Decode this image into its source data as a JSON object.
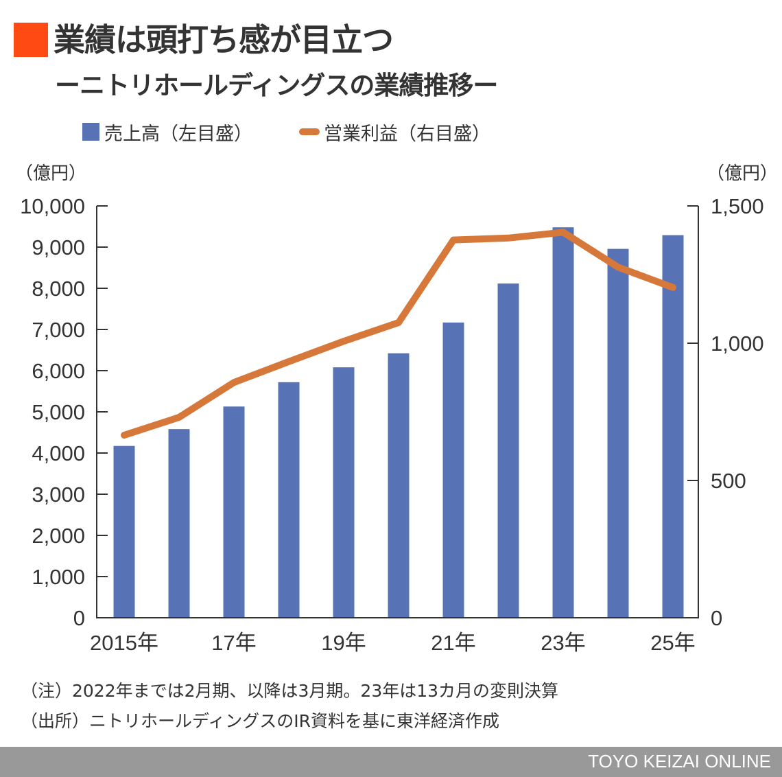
{
  "header": {
    "title": "業績は頭打ち感が目立つ",
    "subtitle": "ーニトリホールディングスの業績推移ー",
    "accent_color": "#FF4A14"
  },
  "legend": {
    "bar_label": "売上高（左目盛）",
    "line_label": "営業利益（右目盛）"
  },
  "axes": {
    "left_unit": "（億円）",
    "right_unit": "（億円）",
    "left_ticks": [
      "10,000",
      "9,000",
      "8,000",
      "7,000",
      "6,000",
      "5,000",
      "4,000",
      "3,000",
      "2,000",
      "1,000",
      "0"
    ],
    "right_ticks": [
      "1,500",
      "1,000",
      "500",
      "0"
    ],
    "x_labels": [
      "2015年",
      "17年",
      "19年",
      "21年",
      "23年",
      "25年"
    ]
  },
  "notes": {
    "note": "（注）2022年までは2月期、以降は3月期。23年は13カ月の変則決算",
    "source": "（出所）ニトリホールディングスのIR資料を基に東洋経済作成"
  },
  "footer": {
    "brand": "TOYO KEIZAI ONLINE"
  },
  "colors": {
    "bar": "#5873B5",
    "line": "#D6783A",
    "axis": "#333333",
    "footer_bg": "#999999"
  },
  "chart_data": {
    "type": "bar",
    "title": "業績は頭打ち感が目立つ ーニトリホールディングスの業績推移ー",
    "categories": [
      "2015",
      "2016",
      "2017",
      "2018",
      "2019",
      "2020",
      "2021",
      "2022",
      "2023",
      "2024",
      "2025"
    ],
    "tick_labels": [
      "2015年",
      "17年",
      "19年",
      "21年",
      "23年",
      "25年"
    ],
    "series": [
      {
        "name": "売上高（左目盛）",
        "type": "bar",
        "axis": "left",
        "values": [
          4172,
          4581,
          5129,
          5720,
          6081,
          6422,
          7169,
          8116,
          9480,
          8957,
          9290
        ]
      },
      {
        "name": "営業利益（右目盛）",
        "type": "line",
        "axis": "right",
        "values": [
          665,
          730,
          857,
          933,
          1007,
          1075,
          1376,
          1383,
          1404,
          1277,
          1203
        ]
      }
    ],
    "xlabel": "",
    "ylabel": "億円",
    "ylabel_right": "億円",
    "ylim": [
      0,
      10000
    ],
    "ylim_right": [
      0,
      1500
    ],
    "grid": false,
    "legend_position": "top"
  }
}
